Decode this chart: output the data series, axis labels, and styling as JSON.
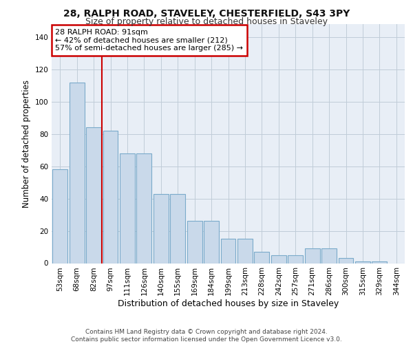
{
  "title1": "28, RALPH ROAD, STAVELEY, CHESTERFIELD, S43 3PY",
  "title2": "Size of property relative to detached houses in Staveley",
  "xlabel": "Distribution of detached houses by size in Staveley",
  "ylabel": "Number of detached properties",
  "categories": [
    "53sqm",
    "68sqm",
    "82sqm",
    "97sqm",
    "111sqm",
    "126sqm",
    "140sqm",
    "155sqm",
    "169sqm",
    "184sqm",
    "199sqm",
    "213sqm",
    "228sqm",
    "242sqm",
    "257sqm",
    "271sqm",
    "286sqm",
    "300sqm",
    "315sqm",
    "329sqm",
    "344sqm"
  ],
  "values": [
    58,
    112,
    84,
    82,
    68,
    68,
    43,
    43,
    26,
    26,
    15,
    15,
    7,
    5,
    5,
    9,
    9,
    3,
    1,
    1,
    0
  ],
  "bar_color": "#c9d9ea",
  "bar_edge_color": "#7aaaca",
  "grid_color": "#c0ccd8",
  "background_color": "#e8eef6",
  "vline_x": 2.5,
  "vline_color": "#cc0000",
  "annotation_text": "28 RALPH ROAD: 91sqm\n← 42% of detached houses are smaller (212)\n57% of semi-detached houses are larger (285) →",
  "annotation_box_color": "#cc0000",
  "ylim": [
    0,
    148
  ],
  "yticks": [
    0,
    20,
    40,
    60,
    80,
    100,
    120,
    140
  ],
  "footer": "Contains HM Land Registry data © Crown copyright and database right 2024.\nContains public sector information licensed under the Open Government Licence v3.0.",
  "title1_fontsize": 10,
  "title2_fontsize": 9,
  "ylabel_fontsize": 8.5,
  "xlabel_fontsize": 9,
  "tick_fontsize": 7.5,
  "footer_fontsize": 6.5
}
